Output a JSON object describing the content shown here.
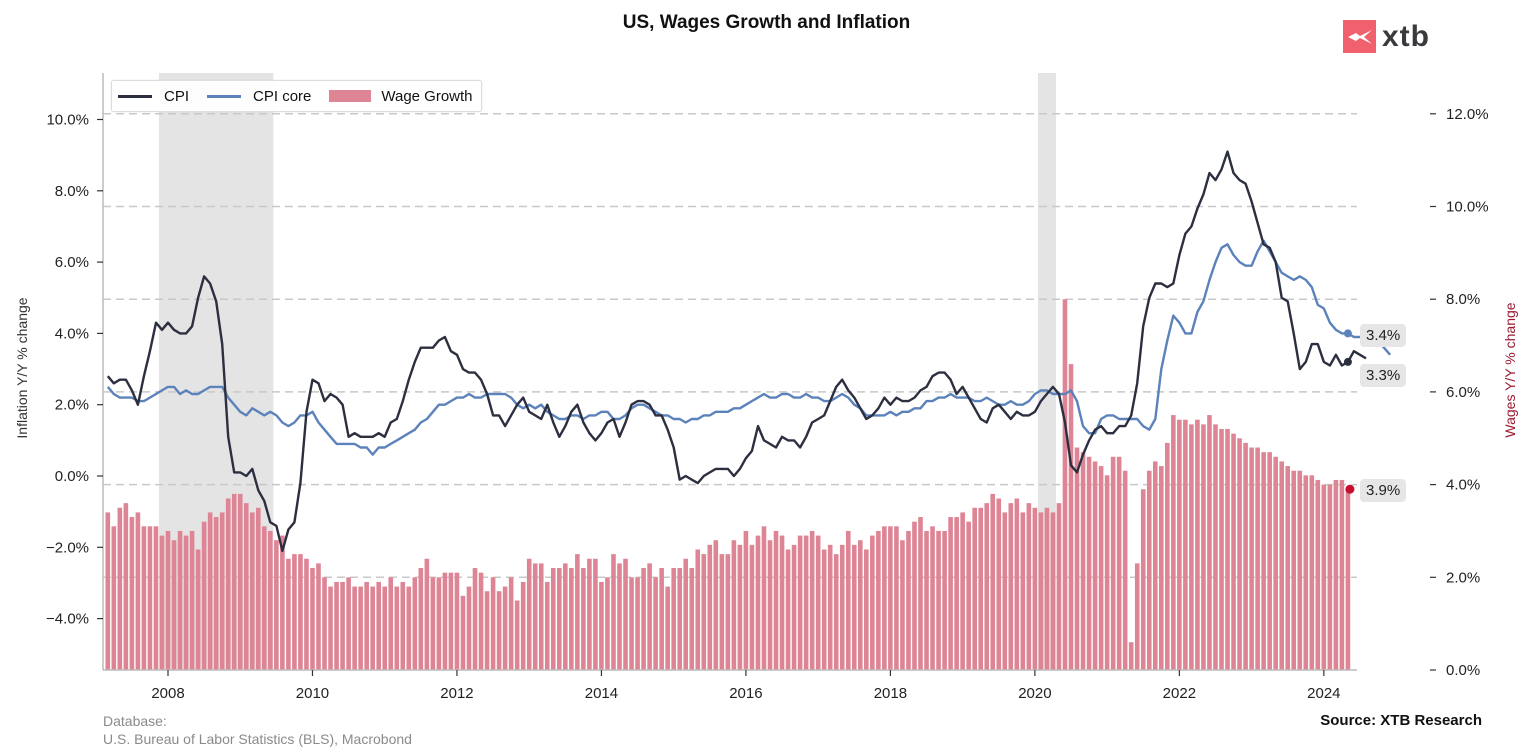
{
  "header": {
    "title": "US, Wages Growth and Inflation",
    "logo_text": "xtb",
    "logo_color": "#f0606d"
  },
  "footer": {
    "database_label": "Database:",
    "database_source": "U.S. Bureau of Labor Statistics (BLS), Macrobond",
    "source": "Source: XTB Research"
  },
  "badges": {
    "cpi_core_last": "3.4%",
    "cpi_last": "3.3%",
    "wage_last": "3.9%"
  },
  "chart_data": {
    "type": "bar+line",
    "title": "US, Wages Growth and Inflation",
    "xlabel": "",
    "ylabel_left": "Inflation Y/Y % change",
    "ylabel_right": "Wages Y/Y % change",
    "ylim_left": [
      -5.5,
      11.2
    ],
    "ylim_right": [
      0,
      12.9
    ],
    "yticks_left": [
      -4,
      -2,
      0,
      2,
      4,
      6,
      8,
      10
    ],
    "yticks_left_labels": [
      "−4.0%",
      "−2.0%",
      "0.0%",
      "2.0%",
      "4.0%",
      "6.0%",
      "8.0%",
      "10.0%"
    ],
    "yticks_right": [
      0,
      2,
      4,
      6,
      8,
      10,
      12
    ],
    "yticks_right_labels": [
      "0.0%",
      "2.0%",
      "4.0%",
      "6.0%",
      "8.0%",
      "10.0%",
      "12.0%"
    ],
    "xticks": [
      "2008",
      "2010",
      "2012",
      "2014",
      "2016",
      "2018",
      "2020",
      "2022",
      "2024"
    ],
    "grid": "horizontal dashed at right-axis ticks",
    "legend": {
      "position": "top-left",
      "entries": [
        "CPI",
        "CPI core",
        "Wage Growth"
      ]
    },
    "colors": {
      "cpi": "#2b2f3f",
      "cpi_core": "#5b82bb",
      "wage": "#de8595",
      "recession": "#e4e4e4",
      "wage_marker": "#c8102e"
    },
    "x_start": "2007-03",
    "x_end": "2024-05",
    "recessions": [
      [
        "2007-12",
        "2009-06"
      ],
      [
        "2020-02",
        "2020-04"
      ]
    ],
    "series": [
      {
        "name": "CPI",
        "axis": "left",
        "values": [
          2.8,
          2.6,
          2.7,
          2.7,
          2.4,
          2.0,
          2.8,
          3.5,
          4.3,
          4.1,
          4.3,
          4.1,
          4.0,
          4.0,
          4.2,
          5.0,
          5.6,
          5.4,
          4.9,
          3.7,
          1.1,
          0.1,
          0.1,
          0.0,
          0.2,
          -0.4,
          -0.7,
          -1.3,
          -1.4,
          -2.1,
          -1.5,
          -1.3,
          -0.2,
          1.8,
          2.7,
          2.6,
          2.1,
          2.3,
          2.2,
          2.0,
          1.1,
          1.2,
          1.1,
          1.1,
          1.1,
          1.2,
          1.1,
          1.5,
          1.6,
          2.1,
          2.7,
          3.2,
          3.6,
          3.6,
          3.6,
          3.8,
          3.9,
          3.5,
          3.4,
          3.0,
          2.9,
          2.9,
          2.7,
          2.3,
          1.7,
          1.7,
          1.4,
          1.7,
          2.0,
          2.2,
          1.8,
          1.7,
          1.6,
          2.0,
          1.5,
          1.1,
          1.4,
          1.8,
          2.0,
          1.5,
          1.2,
          1.0,
          1.2,
          1.5,
          1.6,
          1.1,
          1.5,
          2.0,
          2.1,
          2.1,
          2.0,
          1.7,
          1.7,
          1.3,
          0.8,
          -0.1,
          0.0,
          -0.1,
          -0.2,
          0.0,
          0.1,
          0.2,
          0.2,
          0.2,
          0.0,
          0.2,
          0.5,
          0.7,
          1.4,
          1.0,
          0.9,
          0.8,
          1.1,
          1.0,
          1.0,
          0.8,
          1.1,
          1.5,
          1.6,
          1.7,
          2.1,
          2.5,
          2.7,
          2.4,
          2.2,
          1.9,
          1.6,
          1.7,
          1.9,
          2.2,
          2.0,
          2.2,
          2.1,
          2.1,
          2.2,
          2.4,
          2.5,
          2.8,
          2.9,
          2.9,
          2.7,
          2.3,
          2.5,
          2.2,
          1.9,
          1.6,
          1.5,
          1.9,
          2.0,
          1.8,
          1.6,
          1.8,
          1.7,
          1.7,
          1.8,
          2.1,
          2.3,
          2.5,
          2.3,
          1.5,
          0.3,
          0.1,
          0.6,
          1.0,
          1.3,
          1.4,
          1.2,
          1.2,
          1.4,
          1.4,
          1.7,
          2.6,
          4.2,
          5.0,
          5.4,
          5.4,
          5.3,
          5.4,
          6.2,
          6.8,
          7.0,
          7.5,
          7.9,
          8.5,
          8.3,
          8.6,
          9.1,
          8.5,
          8.3,
          8.2,
          7.7,
          7.1,
          6.5,
          6.4,
          6.0,
          5.0,
          4.9,
          4.0,
          3.0,
          3.2,
          3.7,
          3.7,
          3.2,
          3.1,
          3.4,
          3.1,
          3.2,
          3.5,
          3.4,
          3.3
        ]
      },
      {
        "name": "CPI core",
        "axis": "left",
        "values": [
          2.5,
          2.3,
          2.2,
          2.2,
          2.2,
          2.1,
          2.1,
          2.2,
          2.3,
          2.4,
          2.5,
          2.5,
          2.3,
          2.4,
          2.3,
          2.3,
          2.4,
          2.5,
          2.5,
          2.5,
          2.2,
          2.0,
          1.8,
          1.7,
          1.9,
          1.8,
          1.7,
          1.8,
          1.7,
          1.5,
          1.4,
          1.5,
          1.7,
          1.7,
          1.8,
          1.5,
          1.3,
          1.1,
          0.9,
          0.9,
          0.9,
          0.9,
          0.8,
          0.8,
          0.6,
          0.8,
          0.8,
          0.9,
          1.0,
          1.1,
          1.2,
          1.3,
          1.5,
          1.6,
          1.8,
          2.0,
          2.0,
          2.1,
          2.2,
          2.2,
          2.3,
          2.2,
          2.2,
          2.3,
          2.3,
          2.3,
          2.3,
          2.2,
          2.0,
          1.9,
          2.0,
          1.9,
          2.0,
          1.8,
          1.7,
          1.6,
          1.6,
          1.7,
          1.7,
          1.6,
          1.7,
          1.7,
          1.8,
          1.8,
          1.6,
          1.6,
          1.7,
          1.9,
          2.0,
          2.0,
          1.9,
          1.8,
          1.7,
          1.7,
          1.6,
          1.6,
          1.5,
          1.6,
          1.6,
          1.7,
          1.7,
          1.8,
          1.8,
          1.8,
          1.9,
          1.9,
          2.0,
          2.1,
          2.2,
          2.3,
          2.2,
          2.2,
          2.3,
          2.3,
          2.2,
          2.2,
          2.3,
          2.2,
          2.2,
          2.1,
          2.1,
          2.2,
          2.3,
          2.2,
          2.0,
          1.9,
          1.7,
          1.7,
          1.7,
          1.7,
          1.8,
          1.7,
          1.8,
          1.8,
          1.9,
          1.9,
          2.1,
          2.1,
          2.2,
          2.2,
          2.3,
          2.2,
          2.2,
          2.2,
          2.1,
          2.1,
          2.2,
          2.1,
          2.0,
          2.0,
          2.1,
          2.0,
          2.0,
          2.1,
          2.3,
          2.4,
          2.4,
          2.3,
          2.3,
          2.3,
          2.4,
          2.1,
          1.4,
          1.2,
          1.2,
          1.6,
          1.7,
          1.7,
          1.6,
          1.6,
          1.6,
          1.6,
          1.4,
          1.3,
          1.6,
          3.0,
          3.8,
          4.5,
          4.3,
          4.0,
          4.0,
          4.6,
          4.9,
          5.5,
          6.0,
          6.4,
          6.5,
          6.2,
          6.0,
          5.9,
          5.9,
          6.3,
          6.6,
          6.3,
          6.0,
          5.7,
          5.6,
          5.5,
          5.6,
          5.5,
          5.3,
          4.8,
          4.7,
          4.3,
          4.1,
          4.0,
          4.0,
          3.9,
          3.9,
          3.8,
          3.9,
          3.8,
          3.6,
          3.4
        ]
      },
      {
        "name": "Wage Growth",
        "axis": "right",
        "values": [
          3.4,
          3.1,
          3.5,
          3.6,
          3.3,
          3.4,
          3.1,
          3.1,
          3.1,
          2.9,
          3.0,
          2.8,
          3.0,
          2.9,
          3.0,
          2.6,
          3.2,
          3.4,
          3.3,
          3.4,
          3.7,
          3.8,
          3.8,
          3.6,
          3.4,
          3.5,
          3.1,
          3.0,
          2.8,
          2.9,
          2.4,
          2.5,
          2.5,
          2.4,
          2.2,
          2.3,
          2.0,
          1.8,
          1.9,
          1.9,
          2.0,
          1.8,
          1.8,
          1.9,
          1.8,
          1.9,
          1.8,
          2.0,
          1.8,
          1.9,
          1.8,
          2.0,
          2.2,
          2.4,
          2.0,
          2.0,
          2.1,
          2.1,
          2.1,
          1.6,
          1.8,
          2.2,
          2.1,
          1.7,
          2.0,
          1.7,
          1.8,
          2.0,
          1.5,
          1.9,
          2.4,
          2.3,
          2.3,
          1.9,
          2.2,
          2.2,
          2.3,
          2.2,
          2.5,
          2.2,
          2.4,
          2.4,
          1.9,
          2.0,
          2.5,
          2.3,
          2.4,
          2.0,
          2.0,
          2.2,
          2.3,
          2.0,
          2.2,
          1.8,
          2.2,
          2.2,
          2.4,
          2.2,
          2.6,
          2.5,
          2.7,
          2.8,
          2.5,
          2.5,
          2.8,
          2.7,
          3.0,
          2.7,
          2.9,
          3.1,
          2.8,
          3.0,
          2.9,
          2.6,
          2.7,
          2.9,
          2.9,
          3.0,
          2.9,
          2.6,
          2.7,
          2.5,
          2.7,
          3.0,
          2.7,
          2.8,
          2.6,
          2.9,
          3.0,
          3.1,
          3.1,
          3.1,
          2.8,
          3.0,
          3.2,
          3.3,
          3.0,
          3.1,
          3.0,
          3.0,
          3.3,
          3.3,
          3.4,
          3.2,
          3.5,
          3.5,
          3.6,
          3.8,
          3.7,
          3.4,
          3.6,
          3.7,
          3.4,
          3.6,
          3.5,
          3.4,
          3.5,
          3.4,
          3.6,
          8.0,
          6.6,
          4.8,
          4.7,
          4.6,
          4.5,
          4.4,
          4.2,
          4.6,
          4.6,
          4.3,
          0.6,
          2.3,
          3.9,
          4.3,
          4.5,
          4.4,
          4.9,
          5.5,
          5.4,
          5.4,
          5.3,
          5.4,
          5.3,
          5.5,
          5.3,
          5.2,
          5.2,
          5.1,
          5.0,
          4.9,
          4.8,
          4.8,
          4.7,
          4.7,
          4.6,
          4.5,
          4.4,
          4.3,
          4.3,
          4.2,
          4.2,
          4.1,
          4.0,
          4.0,
          4.1,
          4.1,
          3.9
        ]
      }
    ]
  }
}
